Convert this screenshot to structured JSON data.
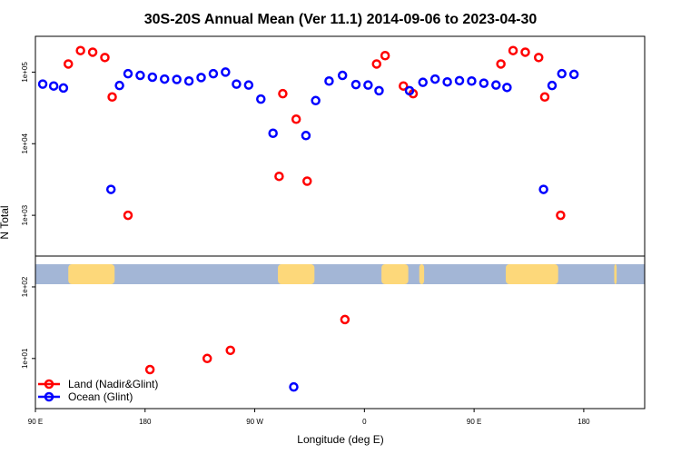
{
  "chart_data": {
    "type": "scatter",
    "title": "30S-20S Annual Mean (Ver 11.1)   2014-09-06 to 2023-04-30",
    "xlabel": "Longitude (deg E)",
    "ylabel": "N Total",
    "xlim": [
      90,
      590
    ],
    "ylim_log10": [
      0.3,
      5.5
    ],
    "x_ticks": [
      {
        "value": 90,
        "label": "90 E"
      },
      {
        "value": 180,
        "label": "180"
      },
      {
        "value": 270,
        "label": "90 W"
      },
      {
        "value": 360,
        "label": "0"
      },
      {
        "value": 450,
        "label": "90 E"
      },
      {
        "value": 540,
        "label": "180"
      }
    ],
    "y_ticks": [
      {
        "value": 10,
        "label": "1e+01"
      },
      {
        "value": 100,
        "label": "1e+02"
      },
      {
        "value": 1000,
        "label": "1e+03"
      },
      {
        "value": 10000,
        "label": "1e+04"
      },
      {
        "value": 100000,
        "label": "1e+05"
      }
    ],
    "background_band": {
      "description": "land/ocean mask strip",
      "ocean_color": "#a3b6d6",
      "land_color": "#fdd87a",
      "land_ranges_lon": [
        [
          117,
          155
        ],
        [
          289,
          319
        ],
        [
          374,
          396
        ],
        [
          405,
          409
        ],
        [
          476,
          519
        ],
        [
          565,
          567
        ]
      ]
    },
    "series": [
      {
        "name": "Land (Nadir&Glint)",
        "color": "#ff0000",
        "points": [
          [
            117,
            130000
          ],
          [
            127,
            200000
          ],
          [
            137,
            190000
          ],
          [
            147,
            160000
          ],
          [
            153,
            45000
          ],
          [
            166,
            1000
          ],
          [
            290,
            3500
          ],
          [
            293,
            50000
          ],
          [
            304,
            22000
          ],
          [
            313,
            3000
          ],
          [
            344,
            35
          ],
          [
            370,
            130000
          ],
          [
            377,
            170000
          ],
          [
            392,
            64000
          ],
          [
            400,
            50000
          ],
          [
            472,
            130000
          ],
          [
            482,
            200000
          ],
          [
            492,
            190000
          ],
          [
            503,
            160000
          ],
          [
            508,
            45000
          ],
          [
            521,
            1000
          ],
          [
            184,
            7
          ],
          [
            231,
            10
          ],
          [
            250,
            13
          ]
        ]
      },
      {
        "name": "Ocean (Glint)",
        "color": "#0000ff",
        "points": [
          [
            96,
            68000
          ],
          [
            105,
            64000
          ],
          [
            113,
            60000
          ],
          [
            152,
            2300
          ],
          [
            159,
            65000
          ],
          [
            166,
            95000
          ],
          [
            176,
            90000
          ],
          [
            186,
            85000
          ],
          [
            196,
            80000
          ],
          [
            206,
            79000
          ],
          [
            216,
            75000
          ],
          [
            226,
            84000
          ],
          [
            236,
            95000
          ],
          [
            246,
            100000
          ],
          [
            255,
            68000
          ],
          [
            265,
            66000
          ],
          [
            275,
            42000
          ],
          [
            285,
            14000
          ],
          [
            312,
            13000
          ],
          [
            320,
            40000
          ],
          [
            331,
            75000
          ],
          [
            342,
            90000
          ],
          [
            353,
            67000
          ],
          [
            363,
            66000
          ],
          [
            372,
            55000
          ],
          [
            397,
            55000
          ],
          [
            408,
            72000
          ],
          [
            418,
            80000
          ],
          [
            428,
            73000
          ],
          [
            438,
            76000
          ],
          [
            448,
            75000
          ],
          [
            458,
            70000
          ],
          [
            468,
            66000
          ],
          [
            477,
            61000
          ],
          [
            507,
            2300
          ],
          [
            514,
            65000
          ],
          [
            522,
            95000
          ],
          [
            532,
            93000
          ],
          [
            302,
            4
          ]
        ]
      }
    ],
    "legend": {
      "position": "bottom-left",
      "entries": [
        "Land (Nadir&Glint)",
        "Ocean (Glint)"
      ]
    }
  }
}
